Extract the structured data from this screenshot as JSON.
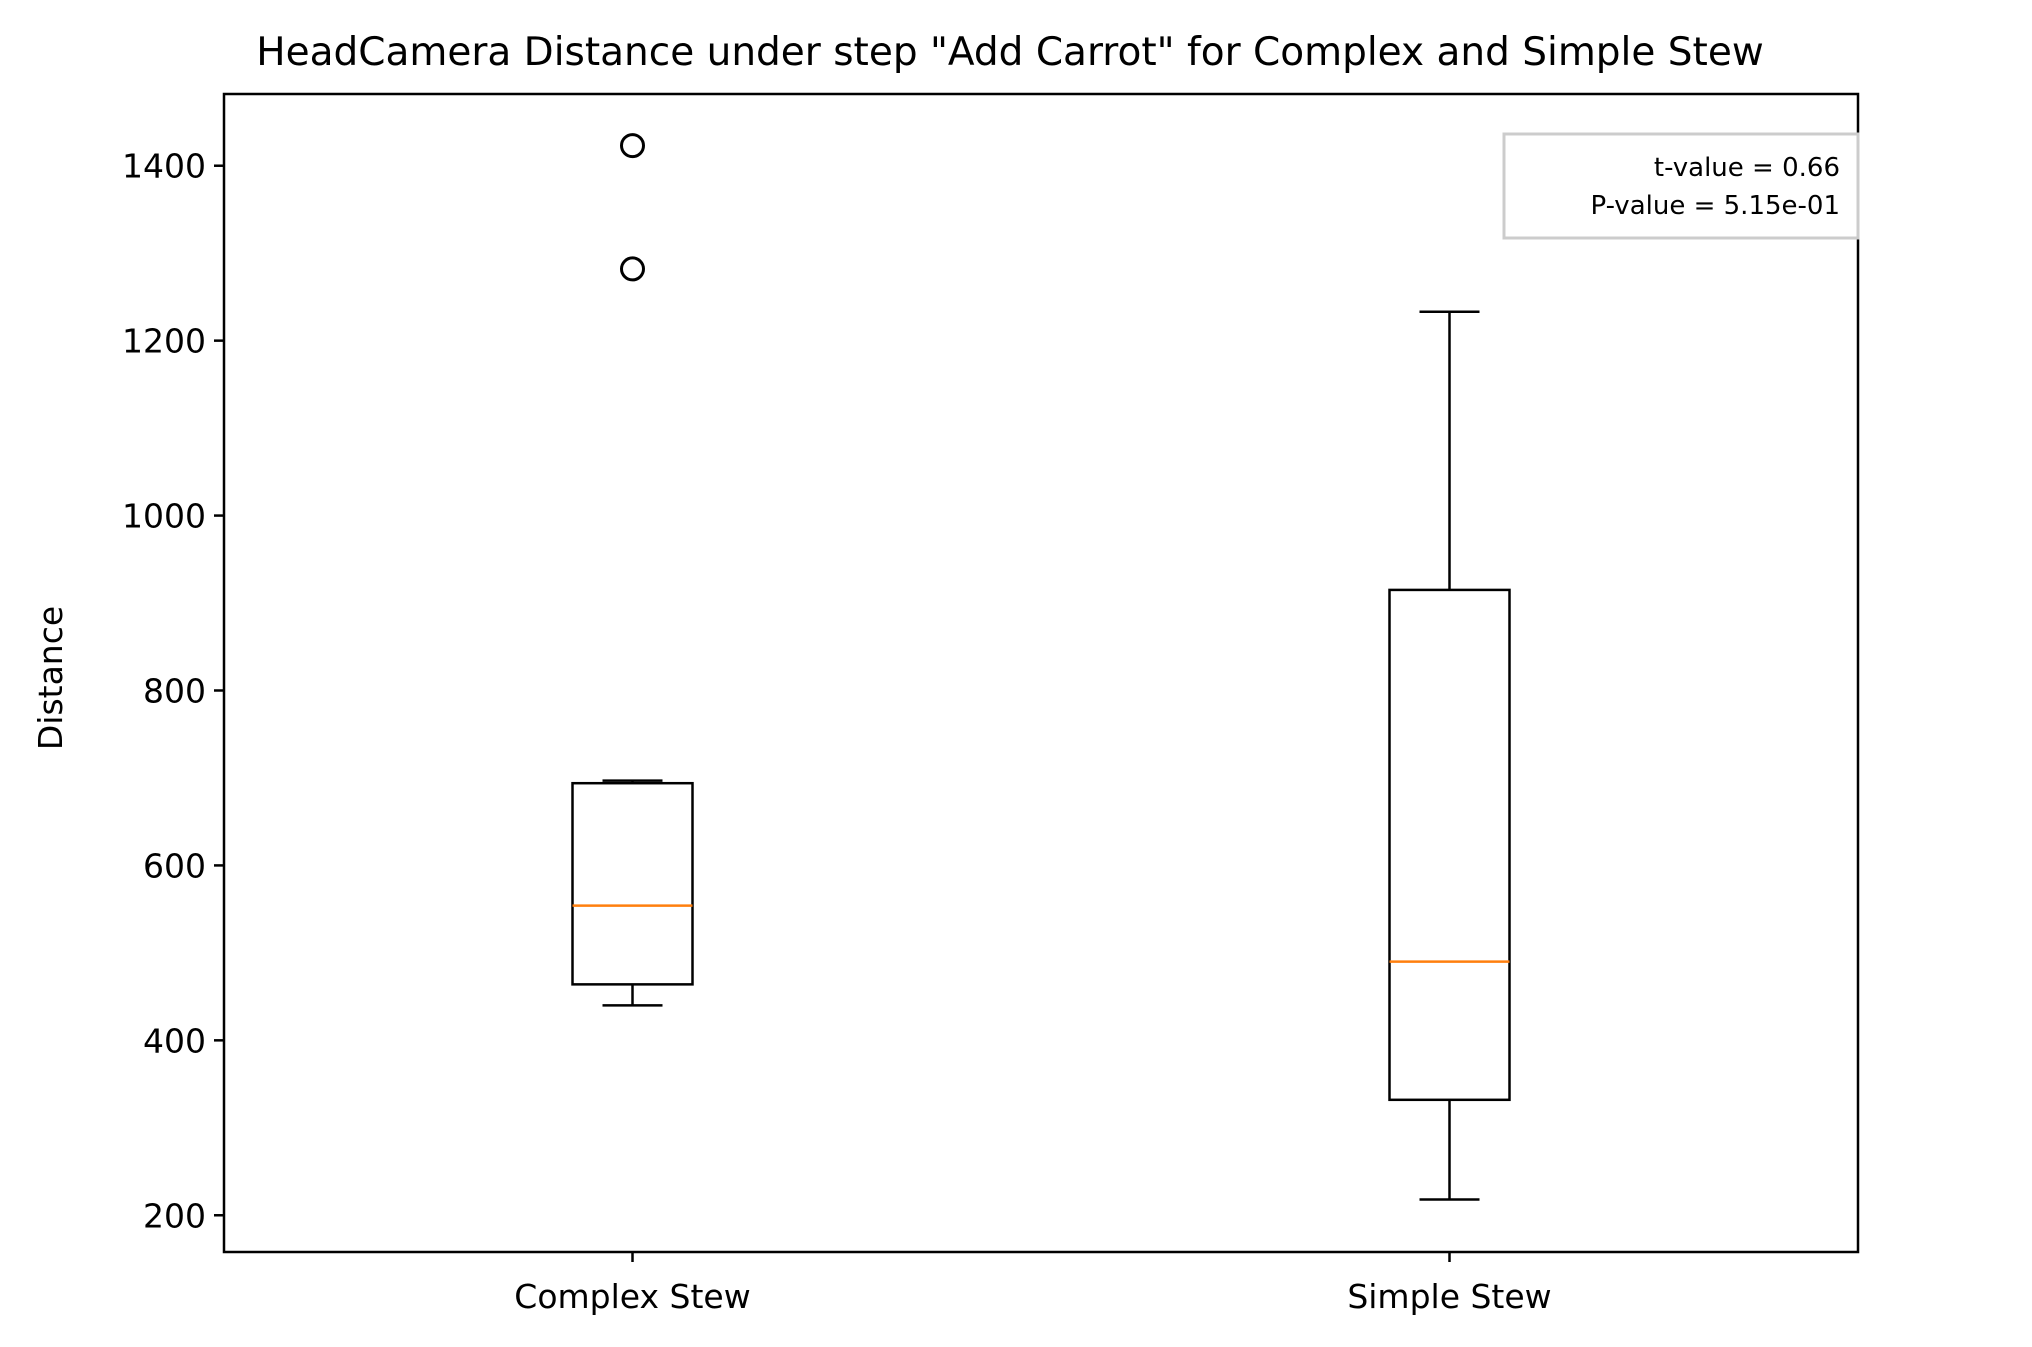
{
  "chart_data": {
    "type": "box",
    "title": "HeadCamera Distance under step \"Add Carrot\" for Complex and Simple Stew",
    "xlabel": "",
    "ylabel": "Distance",
    "ylim": [
      158,
      1482
    ],
    "yticks": [
      200,
      400,
      600,
      800,
      1000,
      1200,
      1400
    ],
    "categories": [
      "Complex Stew",
      "Simple Stew"
    ],
    "boxes": [
      {
        "category": "Complex Stew",
        "whisker_low": 440,
        "q1": 464,
        "median": 554,
        "q3": 694,
        "whisker_high": 697,
        "outliers": [
          1282,
          1423
        ]
      },
      {
        "category": "Simple Stew",
        "whisker_low": 218,
        "q1": 332,
        "median": 490,
        "q3": 915,
        "whisker_high": 1233,
        "outliers": []
      }
    ],
    "annotation": {
      "line1": "t-value = 0.66",
      "line2": "P-value = 5.15e-01",
      "placement": "top-right"
    },
    "colors": {
      "box": "#000000",
      "median": "#ff7f0e",
      "legend_border": "#cccccc"
    },
    "grid": false
  }
}
